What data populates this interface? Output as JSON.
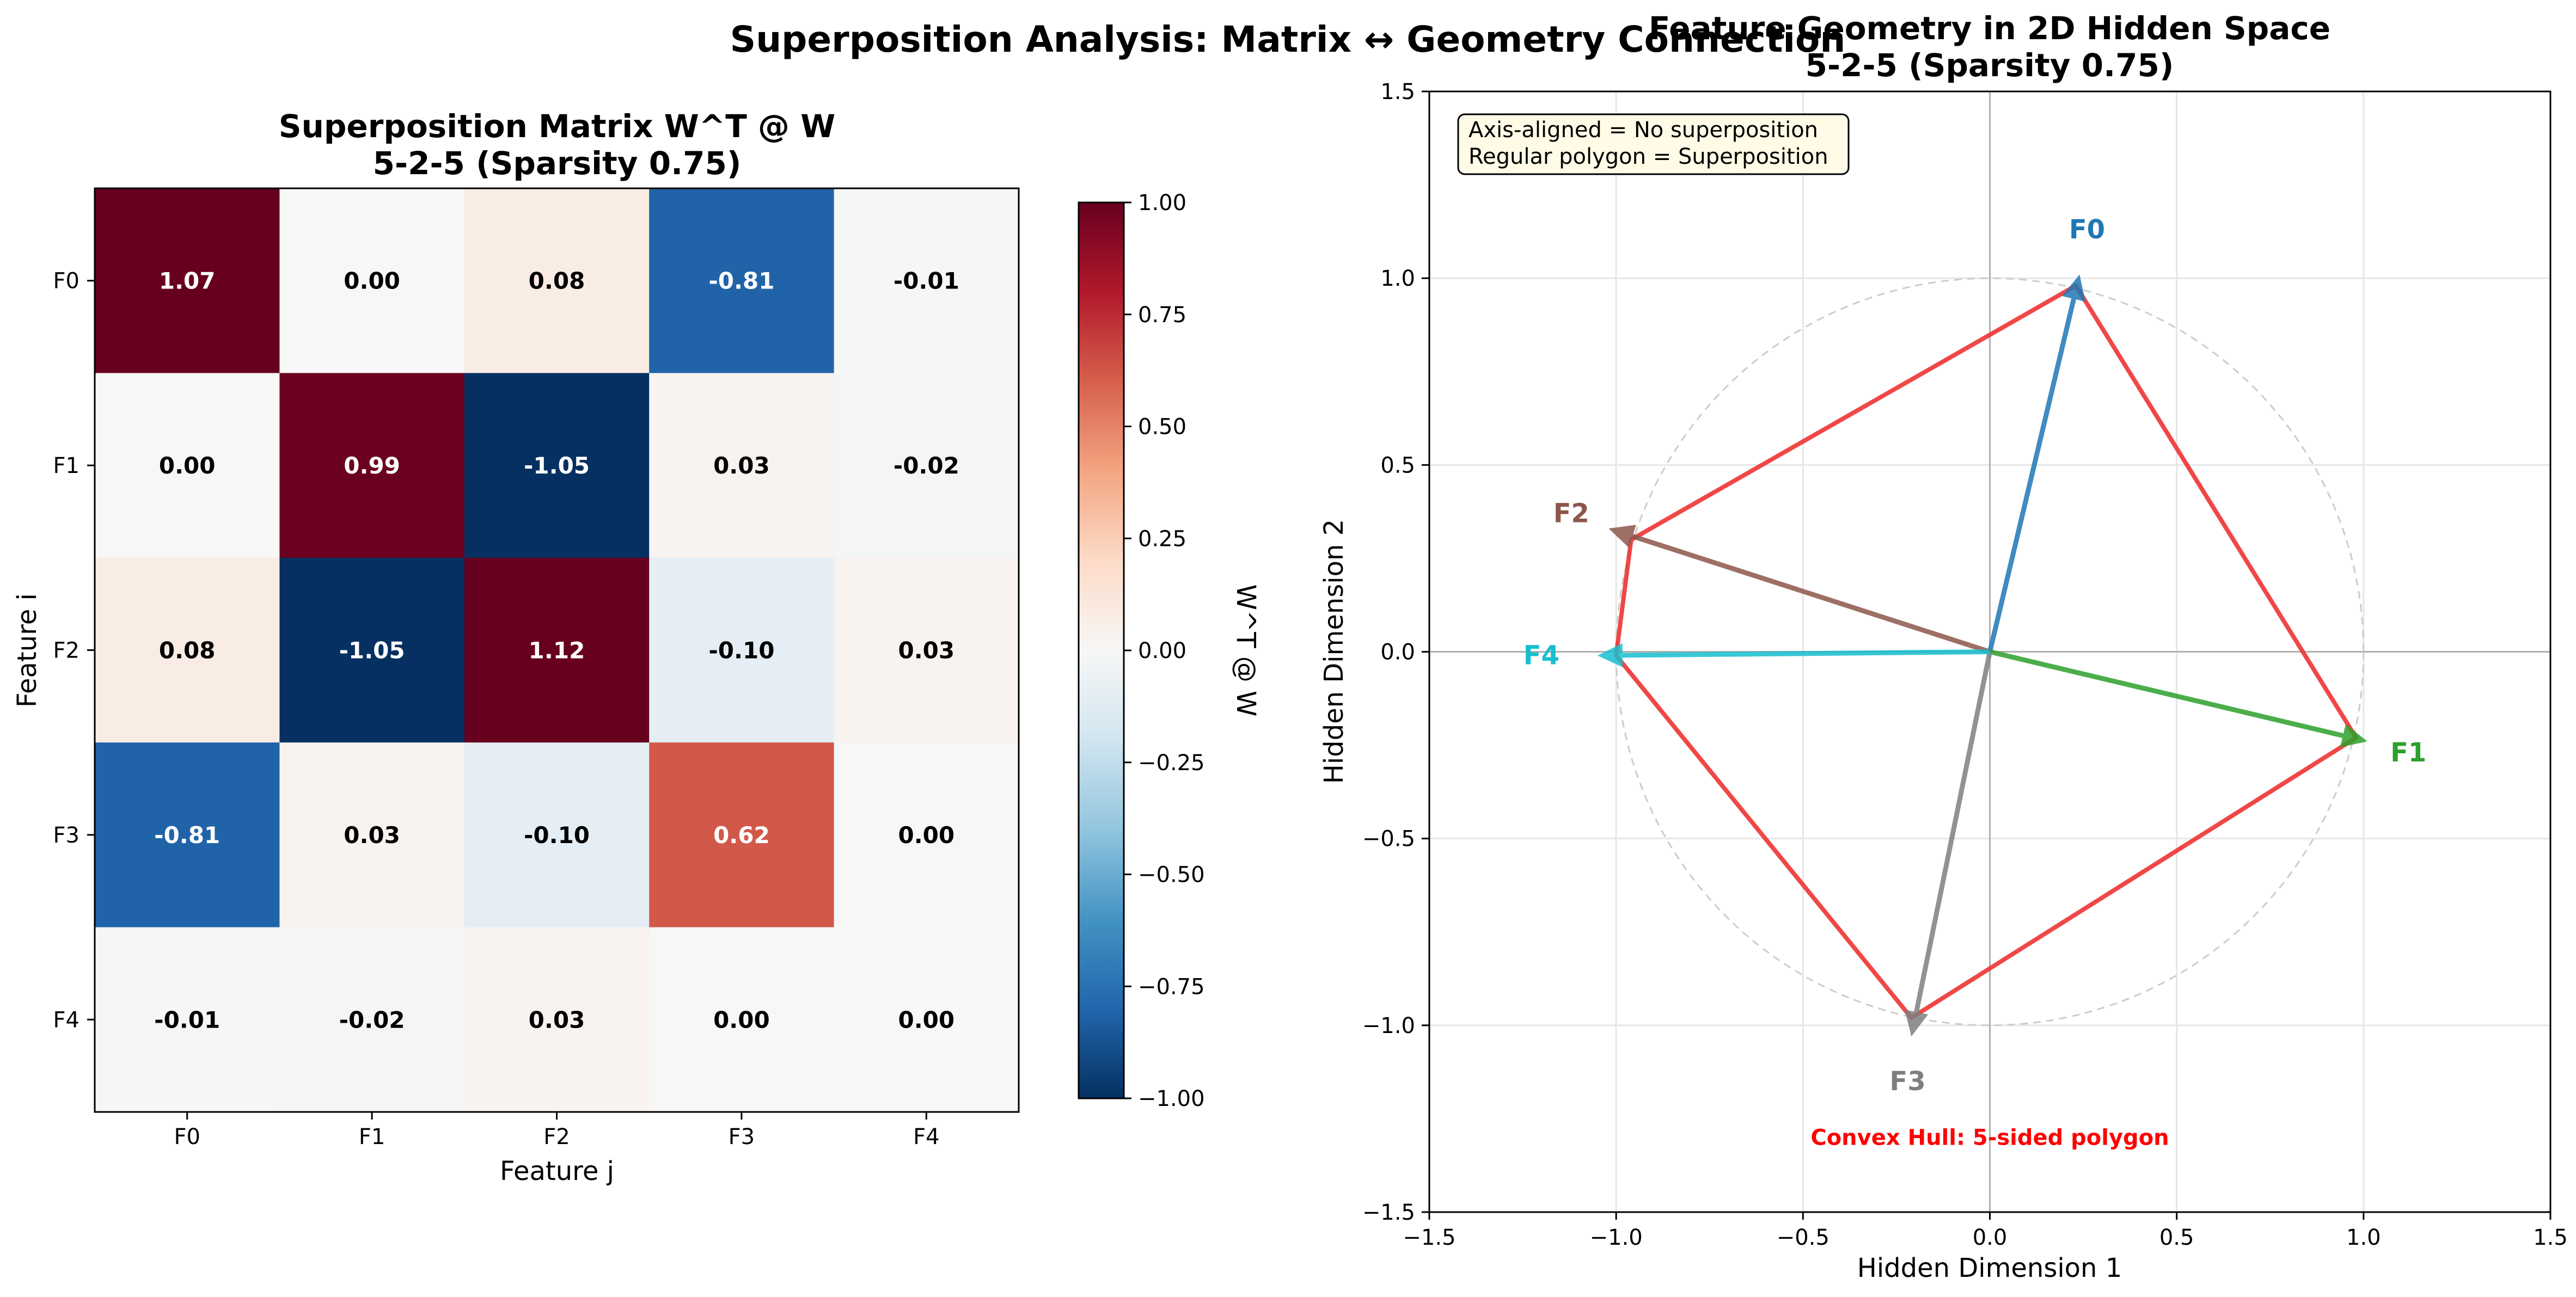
{
  "figure": {
    "suptitle": "Superposition Analysis: Matrix ↔ Geometry Connection"
  },
  "chart_data": [
    {
      "type": "heatmap",
      "title_line1": "Superposition Matrix W^T @ W",
      "title_line2": "5-2-5 (Sparsity 0.75)",
      "xlabel": "Feature j",
      "ylabel": "Feature i",
      "row_labels": [
        "F0",
        "F1",
        "F2",
        "F3",
        "F4"
      ],
      "col_labels": [
        "F0",
        "F1",
        "F2",
        "F3",
        "F4"
      ],
      "values": [
        [
          1.07,
          0.0,
          0.08,
          -0.81,
          -0.01
        ],
        [
          0.0,
          0.99,
          -1.05,
          0.03,
          -0.02
        ],
        [
          0.08,
          -1.05,
          1.12,
          -0.1,
          0.03
        ],
        [
          -0.81,
          0.03,
          -0.1,
          0.62,
          0.0
        ],
        [
          -0.01,
          -0.02,
          0.03,
          0.0,
          0.0
        ]
      ],
      "value_labels": [
        [
          "1.07",
          "0.00",
          "0.08",
          "-0.81",
          "-0.01"
        ],
        [
          "0.00",
          "0.99",
          "-1.05",
          "0.03",
          "-0.02"
        ],
        [
          "0.08",
          "-1.05",
          "1.12",
          "-0.10",
          "0.03"
        ],
        [
          "-0.81",
          "0.03",
          "-0.10",
          "0.62",
          "0.00"
        ],
        [
          "-0.01",
          "-0.02",
          "0.03",
          "0.00",
          "0.00"
        ]
      ],
      "colormap": "RdBu_r",
      "vmin": -1.0,
      "vmax": 1.0,
      "colorbar": {
        "label": "W^T @ W",
        "ticks": [
          1.0,
          0.75,
          0.5,
          0.25,
          0.0,
          -0.25,
          -0.5,
          -0.75,
          -1.0
        ],
        "tick_labels": [
          "1.00",
          "0.75",
          "0.50",
          "0.25",
          "0.00",
          "−0.25",
          "−0.50",
          "−0.75",
          "−1.00"
        ]
      }
    },
    {
      "type": "scatter",
      "subtype": "vector-arrows",
      "title_line1": "Feature Geometry in 2D Hidden Space",
      "title_line2": "5-2-5 (Sparsity 0.75)",
      "xlabel": "Hidden Dimension 1",
      "ylabel": "Hidden Dimension 2",
      "xlim": [
        -1.5,
        1.5
      ],
      "ylim": [
        -1.5,
        1.5
      ],
      "x_ticks": [
        -1.5,
        -1.0,
        -0.5,
        0.0,
        0.5,
        1.0,
        1.5
      ],
      "x_tick_labels": [
        "−1.5",
        "−1.0",
        "−0.5",
        "0.0",
        "0.5",
        "1.0",
        "1.5"
      ],
      "y_ticks": [
        1.5,
        1.0,
        0.5,
        0.0,
        -0.5,
        -1.0,
        -1.5
      ],
      "y_tick_labels": [
        "1.5",
        "1.0",
        "0.5",
        "0.0",
        "−0.5",
        "−1.0",
        "−1.5"
      ],
      "grid": true,
      "unit_circle": true,
      "vectors": [
        {
          "name": "F0",
          "x": 0.24,
          "y": 1.01,
          "color": "#1f77b4"
        },
        {
          "name": "F1",
          "x": 1.01,
          "y": -0.24,
          "color": "#2ca02c"
        },
        {
          "name": "F2",
          "x": -1.02,
          "y": 0.33,
          "color": "#8c564b"
        },
        {
          "name": "F3",
          "x": -0.21,
          "y": -1.03,
          "color": "#7f7f7f"
        },
        {
          "name": "F4",
          "x": -1.05,
          "y": -0.01,
          "color": "#17becf"
        }
      ],
      "hull": {
        "color": "#ee3333",
        "points": [
          [
            0.23,
            0.98
          ],
          [
            0.98,
            -0.23
          ],
          [
            -0.21,
            -0.98
          ],
          [
            -1.0,
            -0.01
          ],
          [
            -0.96,
            0.3
          ]
        ]
      },
      "annotation_box": {
        "line1": "Axis-aligned = No superposition",
        "line2": "Regular polygon = Superposition"
      },
      "hull_label": "Convex Hull: 5-sided polygon",
      "hull_label_color": "#ff0000"
    }
  ]
}
